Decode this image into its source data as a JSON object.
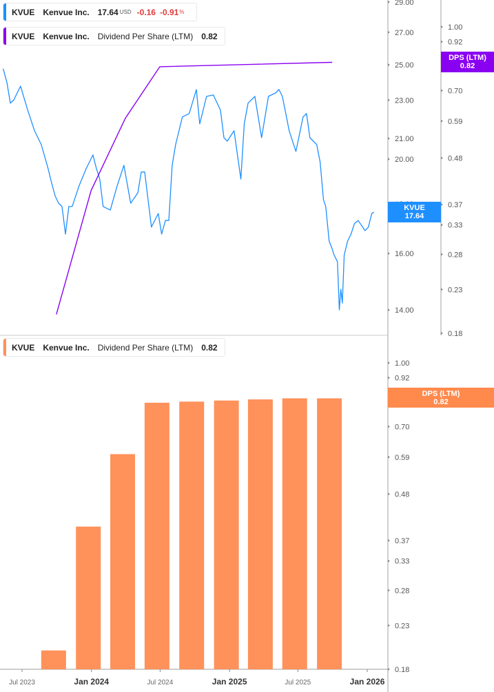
{
  "legend_price": {
    "ticker": "KVUE",
    "name": "Kenvue Inc.",
    "price": "17.64",
    "currency": "USD",
    "change": "-0.16",
    "change_pct": "-0.91",
    "pct_sign": "%"
  },
  "legend_dps_top": {
    "ticker": "KVUE",
    "name": "Kenvue Inc.",
    "metric": "Dividend Per Share (LTM)",
    "value": "0.82"
  },
  "legend_dps_bottom": {
    "ticker": "KVUE",
    "name": "Kenvue Inc.",
    "metric": "Dividend Per Share (LTM)",
    "value": "0.82"
  },
  "tags": {
    "price": {
      "label": "KVUE",
      "value": "17.64"
    },
    "dps_top": {
      "label": "DPS (LTM)",
      "value": "0.82"
    },
    "dps_bottom": {
      "label": "DPS (LTM)",
      "value": "0.82"
    }
  },
  "colors": {
    "price": "#1E8FFF",
    "dps_line": "#8A00F0",
    "bars": "#FF915A",
    "negative": "#E03B3B"
  },
  "chart_data": [
    {
      "type": "line",
      "scale": "log",
      "series": [
        {
          "name": "KVUE",
          "axis": "price",
          "points": [
            [
              "2023-05-12",
              24.77
            ],
            [
              "2023-05-22",
              23.97
            ],
            [
              "2023-05-31",
              22.83
            ],
            [
              "2023-06-09",
              23.01
            ],
            [
              "2023-06-27",
              23.77
            ],
            [
              "2023-07-16",
              22.46
            ],
            [
              "2023-08-03",
              21.39
            ],
            [
              "2023-08-21",
              20.7
            ],
            [
              "2023-09-08",
              19.56
            ],
            [
              "2023-09-17",
              18.93
            ],
            [
              "2023-09-27",
              18.32
            ],
            [
              "2023-10-06",
              18.02
            ],
            [
              "2023-10-15",
              17.88
            ],
            [
              "2023-10-24",
              16.75
            ],
            [
              "2023-11-02",
              17.88
            ],
            [
              "2023-11-11",
              17.88
            ],
            [
              "2023-11-29",
              18.77
            ],
            [
              "2023-12-18",
              19.56
            ],
            [
              "2024-01-05",
              20.2
            ],
            [
              "2024-01-14",
              19.56
            ],
            [
              "2024-01-23",
              19.08
            ],
            [
              "2024-02-01",
              17.88
            ],
            [
              "2024-02-20",
              17.73
            ],
            [
              "2024-03-09",
              18.77
            ],
            [
              "2024-03-27",
              19.71
            ],
            [
              "2024-04-14",
              18.02
            ],
            [
              "2024-05-03",
              18.47
            ],
            [
              "2024-05-12",
              19.4
            ],
            [
              "2024-05-21",
              19.4
            ],
            [
              "2024-05-30",
              18.17
            ],
            [
              "2024-06-08",
              17.03
            ],
            [
              "2024-06-26",
              17.59
            ],
            [
              "2024-07-05",
              16.75
            ],
            [
              "2024-07-15",
              17.3
            ],
            [
              "2024-07-24",
              17.3
            ],
            [
              "2024-08-02",
              19.71
            ],
            [
              "2024-08-11",
              20.7
            ],
            [
              "2024-08-29",
              22.1
            ],
            [
              "2024-09-16",
              22.28
            ],
            [
              "2024-10-05",
              23.58
            ],
            [
              "2024-10-14",
              21.74
            ],
            [
              "2024-11-01",
              23.2
            ],
            [
              "2024-11-19",
              23.28
            ],
            [
              "2024-12-08",
              22.46
            ],
            [
              "2024-12-17",
              21.04
            ],
            [
              "2024-12-26",
              20.87
            ],
            [
              "2025-01-13",
              21.39
            ],
            [
              "2025-01-31",
              19.08
            ],
            [
              "2025-02-09",
              21.74
            ],
            [
              "2025-02-19",
              22.83
            ],
            [
              "2025-03-09",
              23.2
            ],
            [
              "2025-03-27",
              21.04
            ],
            [
              "2025-04-14",
              23.2
            ],
            [
              "2025-05-03",
              23.39
            ],
            [
              "2025-05-12",
              23.58
            ],
            [
              "2025-05-21",
              23.2
            ],
            [
              "2025-05-30",
              22.28
            ],
            [
              "2025-06-08",
              21.39
            ],
            [
              "2025-06-26",
              20.37
            ],
            [
              "2025-07-15",
              22.1
            ],
            [
              "2025-07-24",
              22.28
            ],
            [
              "2025-08-02",
              21.04
            ],
            [
              "2025-08-20",
              20.7
            ],
            [
              "2025-08-29",
              19.87
            ],
            [
              "2025-09-07",
              18.17
            ],
            [
              "2025-09-13",
              17.88
            ],
            [
              "2025-09-22",
              16.48
            ],
            [
              "2025-09-29",
              16.21
            ],
            [
              "2025-10-05",
              15.95
            ],
            [
              "2025-10-14",
              15.69
            ],
            [
              "2025-10-19",
              14.0
            ],
            [
              "2025-10-23",
              14.7
            ],
            [
              "2025-10-27",
              14.23
            ],
            [
              "2025-11-01",
              15.95
            ],
            [
              "2025-11-10",
              16.48
            ],
            [
              "2025-11-19",
              16.75
            ],
            [
              "2025-11-28",
              17.17
            ],
            [
              "2025-12-08",
              17.3
            ],
            [
              "2025-12-26",
              16.89
            ],
            [
              "2026-01-04",
              17.03
            ],
            [
              "2026-01-13",
              17.59
            ],
            [
              "2026-01-19",
              17.64
            ]
          ]
        },
        {
          "name": "Dividend Per Share (LTM)",
          "axis": "dps",
          "points": [
            [
              "2023-09-30",
              0.2
            ],
            [
              "2023-12-31",
              0.4
            ],
            [
              "2024-03-31",
              0.6
            ],
            [
              "2024-06-30",
              0.8
            ],
            [
              "2025-09-30",
              0.82
            ]
          ]
        }
      ],
      "y_price_ticks": [
        "29.00",
        "27.00",
        "25.00",
        "23.00",
        "21.00",
        "20.00",
        "18.00",
        "16.00",
        "14.00"
      ],
      "y_dps_ticks": [
        "1.00",
        "0.92",
        "0.81",
        "0.70",
        "0.59",
        "0.48",
        "0.37",
        "0.33",
        "0.28",
        "0.23",
        "0.18"
      ],
      "ylim_price": [
        13.2,
        29
      ],
      "ylim_dps": [
        0.18,
        1.0
      ]
    },
    {
      "type": "bar",
      "scale": "log",
      "series": [
        {
          "name": "Dividend Per Share (LTM)",
          "points": [
            [
              "2023-09-30",
              0.2
            ],
            [
              "2023-12-31",
              0.4
            ],
            [
              "2024-03-31",
              0.6
            ],
            [
              "2024-06-30",
              0.8
            ],
            [
              "2024-09-30",
              0.805
            ],
            [
              "2024-12-31",
              0.81
            ],
            [
              "2025-03-31",
              0.815
            ],
            [
              "2025-06-30",
              0.82
            ],
            [
              "2025-09-30",
              0.82
            ]
          ]
        }
      ],
      "y_ticks": [
        "1.00",
        "0.92",
        "0.81",
        "0.70",
        "0.59",
        "0.48",
        "0.37",
        "0.33",
        "0.28",
        "0.23",
        "0.18"
      ],
      "ylim": [
        0.18,
        1.0
      ],
      "x_ticks": [
        {
          "label": "Jul 2023",
          "date": "2023-07-01",
          "major": false
        },
        {
          "label": "Jan 2024",
          "date": "2024-01-01",
          "major": true
        },
        {
          "label": "Jul 2024",
          "date": "2024-07-01",
          "major": false
        },
        {
          "label": "Jan 2025",
          "date": "2025-01-01",
          "major": true
        },
        {
          "label": "Jul 2025",
          "date": "2025-07-01",
          "major": false
        },
        {
          "label": "Jan 2026",
          "date": "2026-01-01",
          "major": true
        }
      ]
    }
  ]
}
